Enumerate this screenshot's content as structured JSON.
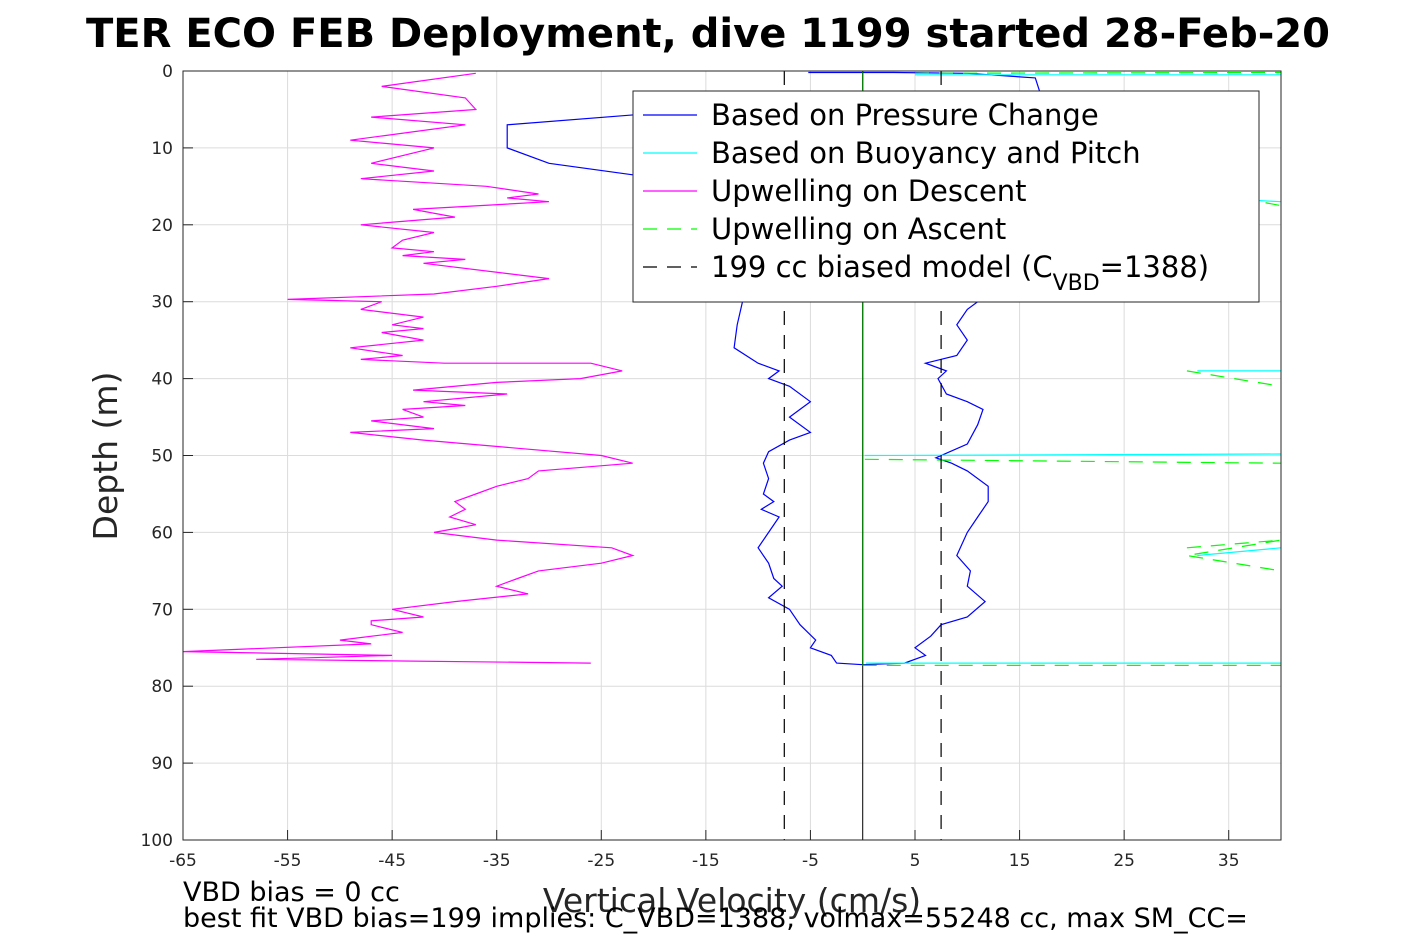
{
  "chart_data": {
    "type": "line",
    "title": "TER ECO FEB Deployment, dive 1199 started 28-Feb-20",
    "xlabel": "Vertical Velocity (cm/s)",
    "ylabel": "Depth (m)",
    "xlim": [
      -65,
      40
    ],
    "ylim": [
      0,
      100
    ],
    "y_reversed": true,
    "grid": true,
    "legend_placement": "top-right",
    "xticks": [
      -65,
      -55,
      -45,
      -35,
      -25,
      -15,
      -5,
      5,
      15,
      25,
      35
    ],
    "yticks": [
      0,
      10,
      20,
      30,
      40,
      50,
      60,
      70,
      80,
      90,
      100
    ],
    "legend": [
      {
        "label": "Based on Pressure Change",
        "color": "#0000ff",
        "dash": ""
      },
      {
        "label": "Based on Buoyancy and Pitch",
        "color": "#00ffff",
        "dash": ""
      },
      {
        "label": "Upwelling on Descent",
        "color": "#ff00ff",
        "dash": ""
      },
      {
        "label": "Upwelling on Ascent",
        "color": "#00ff00",
        "dash": "14,10"
      },
      {
        "label_prefix": "199 cc biased model (C",
        "label_sub": "VBD",
        "label_suffix": "=1388)",
        "color": "#000000",
        "dash": "14,10"
      }
    ],
    "series": [
      {
        "name": "Based on Pressure Change",
        "color": "#0000ff",
        "dash": "",
        "points": [
          [
            -5.2,
            0.2
          ],
          [
            3,
            0.2
          ],
          [
            10,
            0.3
          ],
          [
            16.5,
            0.9
          ],
          [
            17,
            3
          ],
          [
            5,
            3.5
          ],
          [
            -6,
            4
          ],
          [
            -20,
            5.5
          ],
          [
            -34,
            7
          ],
          [
            -34,
            10
          ],
          [
            -30,
            12
          ],
          [
            -22,
            13.5
          ],
          [
            -12,
            15
          ],
          [
            -10,
            16
          ],
          [
            -11,
            22
          ],
          [
            -10,
            26
          ],
          [
            -11,
            28
          ],
          [
            -11.5,
            30
          ],
          [
            -12,
            33
          ],
          [
            -12.3,
            36
          ],
          [
            -10,
            38
          ],
          [
            -8,
            39
          ],
          [
            -9,
            40
          ],
          [
            -7,
            41
          ],
          [
            -5,
            43
          ],
          [
            -6,
            44
          ],
          [
            -7,
            45
          ],
          [
            -5,
            47
          ],
          [
            -7,
            48
          ],
          [
            -9,
            49.5
          ],
          [
            -9.5,
            51
          ],
          [
            -9,
            53
          ],
          [
            -9.5,
            55
          ],
          [
            -8.5,
            56
          ],
          [
            -9.7,
            57
          ],
          [
            -8,
            58
          ],
          [
            -9,
            60
          ],
          [
            -10,
            62
          ],
          [
            -9,
            64
          ],
          [
            -8.5,
            66
          ],
          [
            -7.7,
            67
          ],
          [
            -9,
            68.5
          ],
          [
            -7,
            70
          ],
          [
            -6,
            72
          ],
          [
            -4.5,
            74
          ],
          [
            -5,
            75
          ],
          [
            -3,
            76
          ],
          [
            -2.5,
            77
          ],
          [
            0,
            77.2
          ],
          [
            4,
            77
          ],
          [
            6,
            76
          ],
          [
            5,
            75
          ],
          [
            6.5,
            73.5
          ],
          [
            7.5,
            72
          ],
          [
            10,
            71
          ],
          [
            11.7,
            69
          ],
          [
            10,
            67
          ],
          [
            10.3,
            65
          ],
          [
            9,
            63
          ],
          [
            10,
            60
          ],
          [
            11,
            58
          ],
          [
            12,
            56
          ],
          [
            12,
            54
          ],
          [
            10,
            52
          ],
          [
            8.5,
            51
          ],
          [
            7,
            50.3
          ],
          [
            10,
            48.5
          ],
          [
            11,
            46
          ],
          [
            11.5,
            44
          ],
          [
            10,
            43
          ],
          [
            8,
            42
          ],
          [
            7.2,
            40
          ],
          [
            8,
            39
          ],
          [
            6,
            38
          ],
          [
            9,
            37
          ],
          [
            10,
            35
          ],
          [
            9,
            33
          ],
          [
            10,
            31
          ],
          [
            11,
            30
          ],
          [
            11.7,
            28
          ],
          [
            11,
            26
          ],
          [
            10.5,
            24
          ],
          [
            9,
            22
          ],
          [
            9.5,
            20
          ],
          [
            8.5,
            18
          ],
          [
            7,
            16
          ],
          [
            7,
            14
          ]
        ]
      },
      {
        "name": "Based on Buoyancy and Pitch",
        "color": "#00ffff",
        "dash": "",
        "points": [
          [
            5,
            0.5
          ],
          [
            40,
            0.5
          ],
          null,
          [
            0.2,
            50
          ],
          [
            40,
            49.8
          ],
          null,
          [
            33,
            16.5
          ],
          [
            40,
            17
          ],
          null,
          [
            32,
            39
          ],
          [
            40,
            39
          ],
          null,
          [
            32,
            63
          ],
          [
            40,
            62
          ],
          null,
          [
            0.3,
            77
          ],
          [
            40,
            77
          ]
        ]
      },
      {
        "name": "Upwelling on Descent",
        "color": "#ff00ff",
        "dash": "",
        "points": [
          [
            -37,
            0.3
          ],
          [
            -46,
            2
          ],
          [
            -38,
            3.5
          ],
          [
            -37,
            5
          ],
          [
            -47,
            6
          ],
          [
            -38,
            7
          ],
          [
            -49,
            9
          ],
          [
            -41,
            10
          ],
          [
            -47,
            12
          ],
          [
            -41,
            13
          ],
          [
            -48,
            14
          ],
          [
            -36,
            15
          ],
          [
            -31,
            16
          ],
          [
            -34,
            16.5
          ],
          [
            -30,
            17
          ],
          [
            -43,
            18
          ],
          [
            -39,
            19
          ],
          [
            -48,
            20
          ],
          [
            -41,
            21
          ],
          [
            -44,
            22
          ],
          [
            -45,
            23
          ],
          [
            -41,
            23.5
          ],
          [
            -44,
            24
          ],
          [
            -38,
            24.5
          ],
          [
            -42,
            25
          ],
          [
            -30,
            27
          ],
          [
            -35,
            28
          ],
          [
            -41,
            29
          ],
          [
            -55,
            29.7
          ],
          [
            -46,
            30
          ],
          [
            -48,
            31
          ],
          [
            -42,
            32
          ],
          [
            -45,
            33
          ],
          [
            -42,
            33.5
          ],
          [
            -46,
            34
          ],
          [
            -42,
            35
          ],
          [
            -49,
            36
          ],
          [
            -44,
            37
          ],
          [
            -48,
            37.5
          ],
          [
            -40,
            38
          ],
          [
            -26,
            38
          ],
          [
            -23,
            39
          ],
          [
            -27,
            40
          ],
          [
            -35,
            40.5
          ],
          [
            -43,
            41.5
          ],
          [
            -34,
            42
          ],
          [
            -42,
            43
          ],
          [
            -38,
            43.5
          ],
          [
            -44,
            44
          ],
          [
            -42,
            45
          ],
          [
            -47,
            45.5
          ],
          [
            -41,
            46.5
          ],
          [
            -49,
            47
          ],
          [
            -42,
            48
          ],
          [
            -25,
            50
          ],
          [
            -22,
            51
          ],
          [
            -31,
            52
          ],
          [
            -32,
            53
          ],
          [
            -35,
            54
          ],
          [
            -37,
            55
          ],
          [
            -39,
            56
          ],
          [
            -38,
            57
          ],
          [
            -39.5,
            58
          ],
          [
            -37,
            59
          ],
          [
            -39,
            59.5
          ],
          [
            -41,
            60
          ],
          [
            -35,
            61
          ],
          [
            -24,
            62
          ],
          [
            -22,
            63
          ],
          [
            -25,
            64
          ],
          [
            -31,
            65
          ],
          [
            -33,
            66
          ],
          [
            -35,
            67
          ],
          [
            -32,
            68
          ],
          [
            -39,
            69
          ],
          [
            -45,
            70
          ],
          [
            -42,
            71
          ],
          [
            -47,
            71.5
          ],
          [
            -47,
            72
          ],
          [
            -44,
            73
          ],
          [
            -50,
            74
          ],
          [
            -47,
            74.5
          ],
          [
            -65,
            75.5
          ],
          [
            -45,
            76
          ],
          [
            -58,
            76.5
          ],
          [
            -26,
            77
          ]
        ]
      },
      {
        "name": "Upwelling on Ascent",
        "color": "#00ff00",
        "dash": "14,10",
        "points": [
          [
            5,
            0.3
          ],
          [
            40,
            0.2
          ],
          null,
          [
            0.2,
            50.5
          ],
          [
            40,
            51
          ],
          null,
          [
            0,
            77.3
          ],
          [
            40,
            77.3
          ],
          null,
          [
            34,
            16
          ],
          [
            40,
            17.5
          ],
          null,
          [
            31,
            39
          ],
          [
            40,
            41
          ],
          null,
          [
            31,
            62
          ],
          [
            40,
            61
          ],
          [
            31,
            63
          ],
          [
            40,
            65
          ]
        ]
      },
      {
        "name": "Upwelling on Ascent ref",
        "color": "#008000",
        "dash": "",
        "points": [
          [
            0,
            0
          ],
          [
            0,
            77.3
          ]
        ]
      },
      {
        "name": "199 cc biased model",
        "color": "#000000",
        "dash": "14,10",
        "points": [
          [
            -7.5,
            0
          ],
          [
            -7.5,
            100
          ],
          null,
          [
            7.5,
            0
          ],
          [
            7.5,
            100
          ]
        ]
      }
    ],
    "zero_line": {
      "x": 0,
      "color": "#000000"
    }
  },
  "footer": {
    "line1": "VBD bias = 0 cc",
    "line2": "best fit VBD bias=199 implies: C_VBD=1388, volmax=55248 cc, max SM_CC="
  }
}
